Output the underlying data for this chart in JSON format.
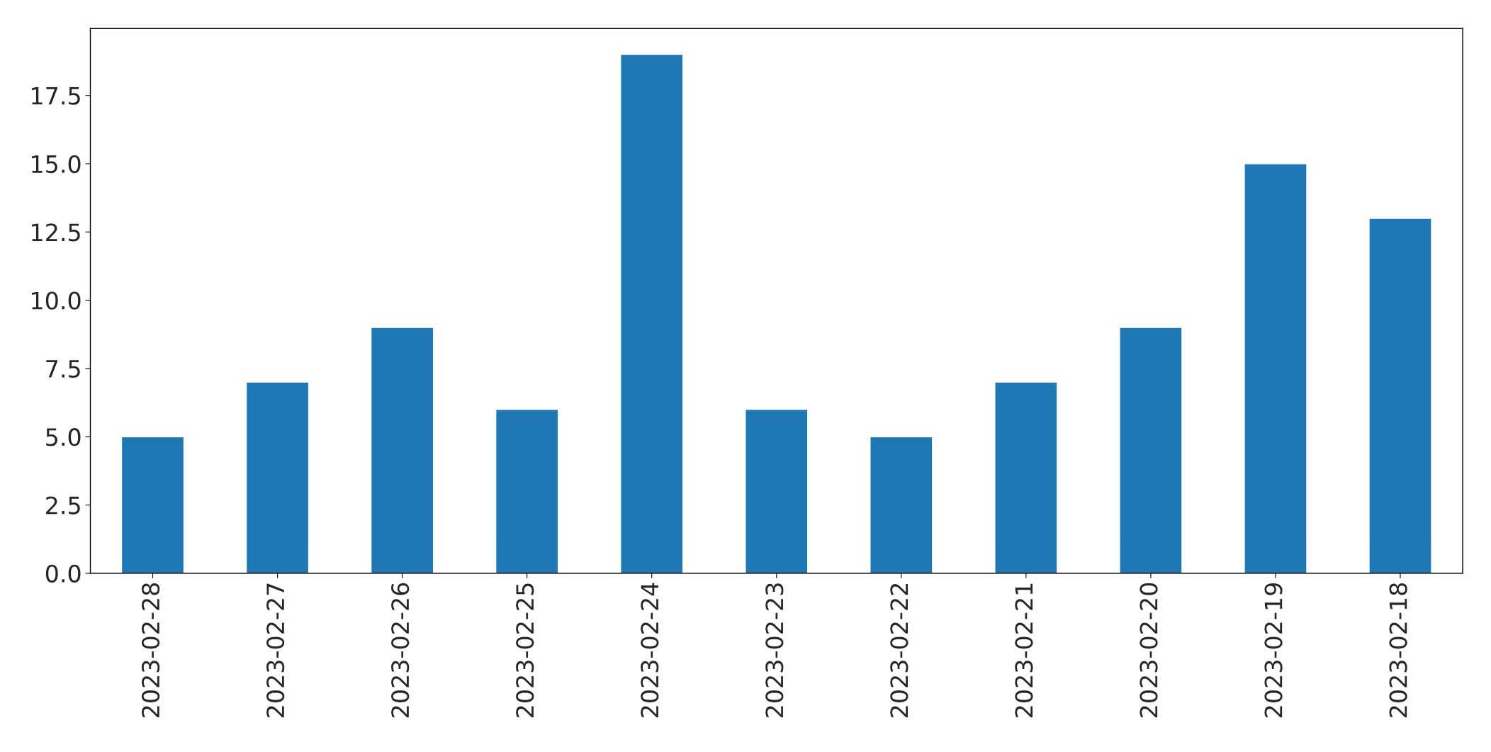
{
  "chart_data": {
    "type": "bar",
    "categories": [
      "2023-02-28",
      "2023-02-27",
      "2023-02-26",
      "2023-02-25",
      "2023-02-24",
      "2023-02-23",
      "2023-02-22",
      "2023-02-21",
      "2023-02-20",
      "2023-02-19",
      "2023-02-18"
    ],
    "values": [
      5,
      7,
      9,
      6,
      19,
      6,
      5,
      7,
      9,
      15,
      13
    ],
    "color": "#1f77b4",
    "ylim": [
      0,
      19.95
    ],
    "yticks": [
      {
        "value": 0,
        "label": "0.0"
      },
      {
        "value": 2.5,
        "label": "2.5"
      },
      {
        "value": 5,
        "label": "5.0"
      },
      {
        "value": 7.5,
        "label": "7.5"
      },
      {
        "value": 10,
        "label": "10.0"
      },
      {
        "value": 12.5,
        "label": "12.5"
      },
      {
        "value": 15,
        "label": "15.0"
      },
      {
        "value": 17.5,
        "label": "17.5"
      }
    ],
    "grid": false
  }
}
